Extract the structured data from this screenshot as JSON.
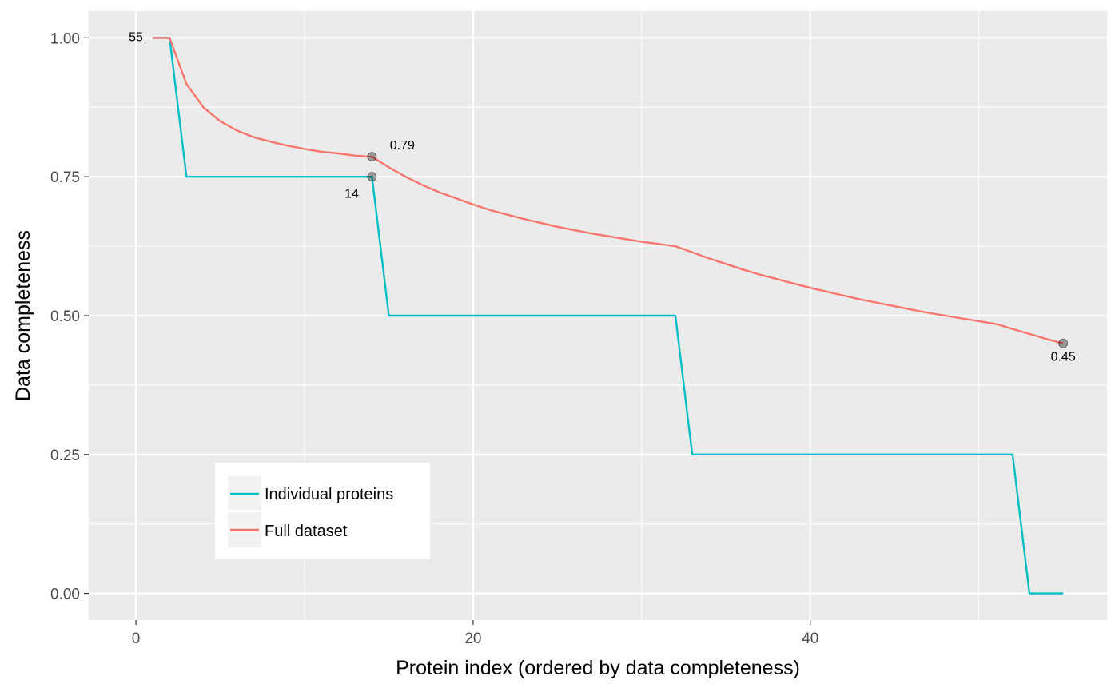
{
  "chart_data": {
    "type": "line",
    "xlabel": "Protein index (ordered by data completeness)",
    "ylabel": "Data completeness",
    "xlim": [
      -2.8,
      57.6
    ],
    "ylim": [
      -0.048,
      1.048
    ],
    "x_ticks": [
      0,
      20,
      40
    ],
    "x_tick_labels": [
      "0",
      "20",
      "40"
    ],
    "y_ticks": [
      0,
      0.25,
      0.5,
      0.75,
      1.0
    ],
    "y_tick_labels": [
      "0.00",
      "0.25",
      "0.50",
      "0.75",
      "1.00"
    ],
    "grid": true,
    "legend_position": "bottom-left",
    "series": [
      {
        "name": "Individual proteins",
        "color": "#00BFC4",
        "x": [
          1,
          2,
          3,
          4,
          5,
          6,
          7,
          8,
          9,
          10,
          11,
          12,
          13,
          14,
          15,
          16,
          17,
          18,
          19,
          20,
          21,
          22,
          23,
          24,
          25,
          26,
          27,
          28,
          29,
          30,
          31,
          32,
          33,
          34,
          35,
          36,
          37,
          38,
          39,
          40,
          41,
          42,
          43,
          44,
          45,
          46,
          47,
          48,
          49,
          50,
          51,
          52,
          53,
          54,
          55
        ],
        "y": [
          1,
          1,
          0.75,
          0.75,
          0.75,
          0.75,
          0.75,
          0.75,
          0.75,
          0.75,
          0.75,
          0.75,
          0.75,
          0.75,
          0.5,
          0.5,
          0.5,
          0.5,
          0.5,
          0.5,
          0.5,
          0.5,
          0.5,
          0.5,
          0.5,
          0.5,
          0.5,
          0.5,
          0.5,
          0.5,
          0.5,
          0.5,
          0.25,
          0.25,
          0.25,
          0.25,
          0.25,
          0.25,
          0.25,
          0.25,
          0.25,
          0.25,
          0.25,
          0.25,
          0.25,
          0.25,
          0.25,
          0.25,
          0.25,
          0.25,
          0.25,
          0.25,
          0,
          0,
          0
        ]
      },
      {
        "name": "Full dataset",
        "color": "#F8766D",
        "x": [
          1,
          2,
          3,
          4,
          5,
          6,
          7,
          8,
          9,
          10,
          11,
          12,
          13,
          14,
          15,
          16,
          17,
          18,
          19,
          20,
          21,
          22,
          23,
          24,
          25,
          26,
          27,
          28,
          29,
          30,
          31,
          32,
          33,
          34,
          35,
          36,
          37,
          38,
          39,
          40,
          41,
          42,
          43,
          44,
          45,
          46,
          47,
          48,
          49,
          50,
          51,
          52,
          53,
          54,
          55
        ],
        "y": [
          1,
          1,
          0.917,
          0.875,
          0.85,
          0.833,
          0.821,
          0.813,
          0.806,
          0.8,
          0.795,
          0.792,
          0.788,
          0.786,
          0.767,
          0.75,
          0.735,
          0.722,
          0.711,
          0.7,
          0.69,
          0.682,
          0.674,
          0.667,
          0.66,
          0.654,
          0.648,
          0.643,
          0.638,
          0.633,
          0.629,
          0.625,
          0.614,
          0.603,
          0.593,
          0.583,
          0.574,
          0.566,
          0.558,
          0.55,
          0.543,
          0.536,
          0.529,
          0.523,
          0.517,
          0.511,
          0.505,
          0.5,
          0.495,
          0.49,
          0.485,
          0.476,
          0.467,
          0.458,
          0.45
        ]
      }
    ],
    "highlight_points": [
      {
        "x": 14,
        "y": 0.786
      },
      {
        "x": 14,
        "y": 0.75
      },
      {
        "x": 55,
        "y": 0.45
      }
    ],
    "annotations": [
      {
        "text": "55",
        "x": 0,
        "y": 1.0,
        "color": "#999999"
      },
      {
        "text": "0.79",
        "x": 15.8,
        "y": 0.805,
        "color": "#000000"
      },
      {
        "text": "14",
        "x": 12.8,
        "y": 0.718,
        "color": "#000000"
      },
      {
        "text": "0.45",
        "x": 55,
        "y": 0.425,
        "color": "#000000"
      }
    ],
    "legend": {
      "entries": [
        "Individual proteins",
        "Full dataset"
      ]
    }
  }
}
